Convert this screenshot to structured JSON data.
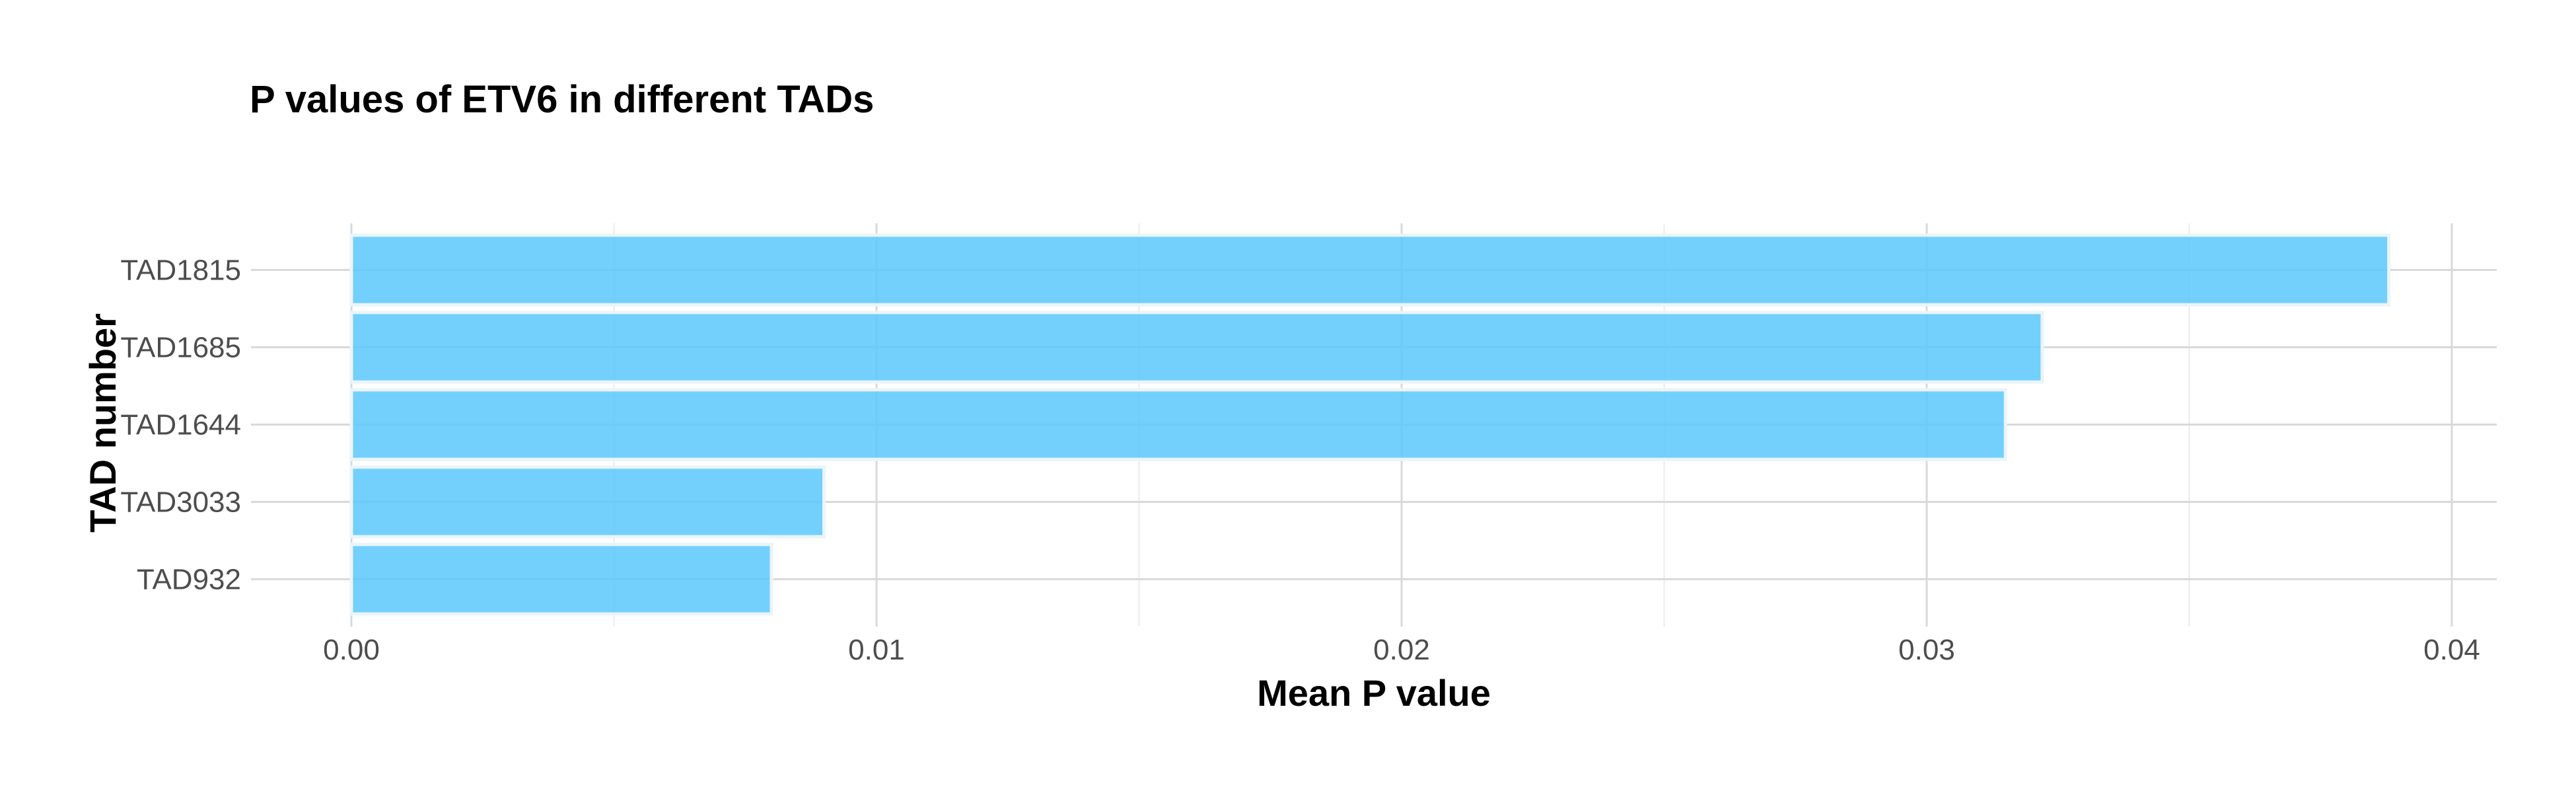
{
  "chart_data": {
    "type": "bar",
    "orientation": "horizontal",
    "title": "P values of ETV6 in different TADs",
    "xlabel": "Mean P value",
    "ylabel": "TAD number",
    "categories": [
      "TAD1815",
      "TAD1685",
      "TAD1644",
      "TAD3033",
      "TAD932"
    ],
    "values": [
      0.0388,
      0.0322,
      0.0315,
      0.009,
      0.008
    ],
    "xlim": [
      0,
      0.04
    ],
    "xticks": [
      0.0,
      0.01,
      0.02,
      0.03,
      0.04
    ],
    "xtick_labels": [
      "0.00",
      "0.01",
      "0.02",
      "0.03",
      "0.04"
    ],
    "grid": true,
    "bar_color": "#5bc8fb"
  }
}
